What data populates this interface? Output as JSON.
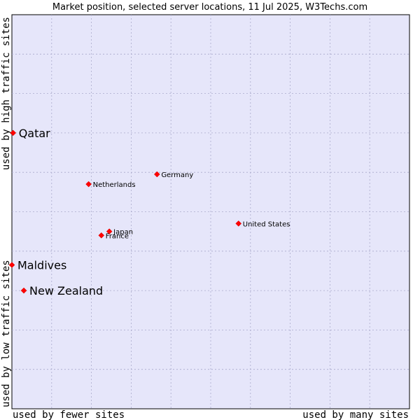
{
  "chart_data": {
    "type": "scatter",
    "title": "Market position, selected server locations, 11 Jul 2025, W3Techs.com",
    "xlabel_left": "used by fewer sites",
    "xlabel_right": "used by many sites",
    "ylabel_bottom": "used by low traffic sites",
    "ylabel_top": "used by high traffic sites",
    "xlim": [
      0,
      100
    ],
    "ylim": [
      0,
      100
    ],
    "grid": true,
    "points": [
      {
        "name": "Qatar",
        "x": 0.3,
        "y": 70.0,
        "emphasis": true
      },
      {
        "name": "Germany",
        "x": 36.5,
        "y": 59.5,
        "emphasis": false
      },
      {
        "name": "Netherlands",
        "x": 19.3,
        "y": 57.0,
        "emphasis": false
      },
      {
        "name": "United States",
        "x": 57.0,
        "y": 47.0,
        "emphasis": false
      },
      {
        "name": "Japan",
        "x": 24.5,
        "y": 45.0,
        "emphasis": false
      },
      {
        "name": "France",
        "x": 22.5,
        "y": 44.0,
        "emphasis": false
      },
      {
        "name": "Maldives",
        "x": 0.0,
        "y": 36.5,
        "emphasis": true
      },
      {
        "name": "New Zealand",
        "x": 3.0,
        "y": 30.0,
        "emphasis": true
      }
    ]
  },
  "colors": {
    "plot_bg": "#e6e6fa",
    "grid": "#aaaacc",
    "marker": "#ff0000",
    "marker_stroke": "#cc0000"
  }
}
